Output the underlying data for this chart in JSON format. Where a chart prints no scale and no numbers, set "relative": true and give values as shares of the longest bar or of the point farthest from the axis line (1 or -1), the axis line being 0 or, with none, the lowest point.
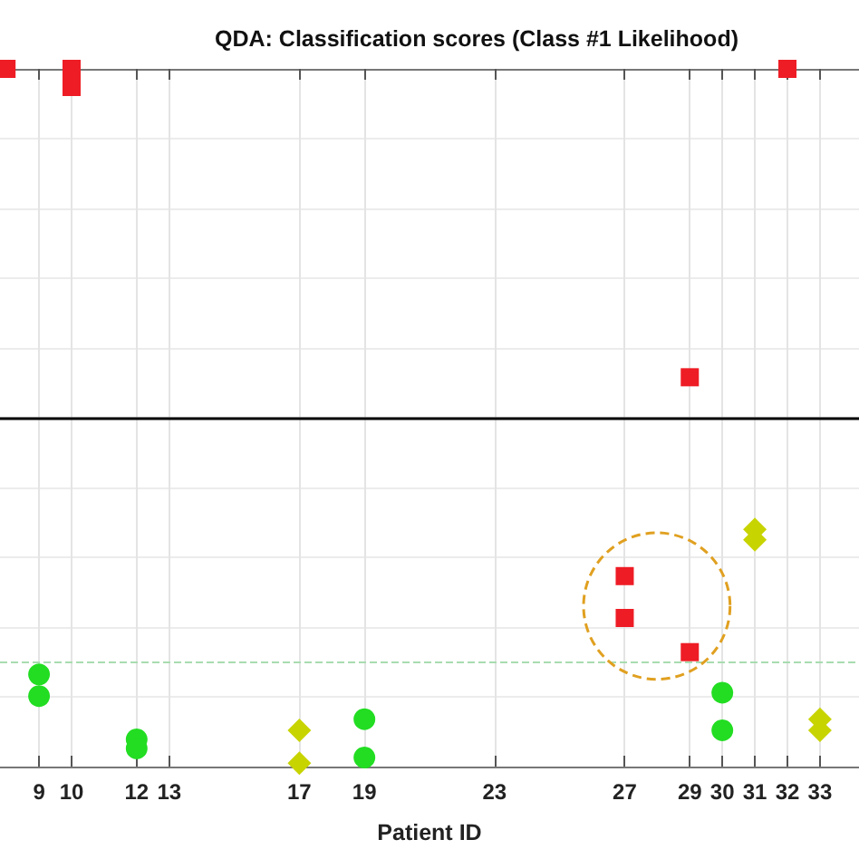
{
  "chart_data": {
    "type": "scatter",
    "title": "QDA: Classification scores (Class #1 Likelihood)",
    "xlabel": "Patient ID",
    "relative": true,
    "xlim": [
      7.8,
      34.2
    ],
    "xticks": [
      9,
      10,
      12,
      13,
      17,
      19,
      23,
      27,
      29,
      30,
      31,
      32,
      33
    ],
    "grid": true,
    "series": [
      {
        "color": "#ee1c25",
        "marker": "square",
        "x": [
          8,
          10,
          10,
          29,
          32,
          27,
          27,
          29
        ],
        "values": [
          1.0,
          1.0,
          0.974,
          0.558,
          1.0,
          0.273,
          0.213,
          0.164
        ]
      },
      {
        "color": "#22dd22",
        "marker": "circle",
        "x": [
          9,
          9,
          12,
          12,
          19,
          19,
          30,
          30
        ],
        "values": [
          0.132,
          0.101,
          0.039,
          0.026,
          0.068,
          0.013,
          0.106,
          0.052
        ]
      },
      {
        "color": "#c8d400",
        "marker": "diamond",
        "x": [
          17,
          17,
          31,
          31,
          33,
          33
        ],
        "values": [
          0.052,
          0.005,
          0.34,
          0.325,
          0.068,
          0.052
        ]
      }
    ],
    "ref_lines": [
      {
        "axis": "y",
        "value": 0.5,
        "color": "#000000",
        "line_style": "solid"
      },
      {
        "axis": "y",
        "value": 0.15,
        "color": "#a8dcb0",
        "line_style": "dashed"
      }
    ]
  }
}
